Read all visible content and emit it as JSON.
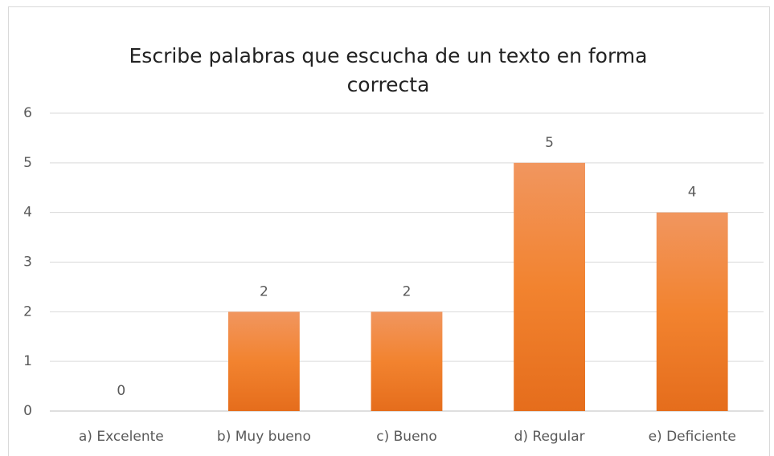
{
  "chart_data": {
    "type": "bar",
    "title": "Escribe palabras que escucha de un texto en forma correcta",
    "categories": [
      "a) Excelente",
      "b) Muy bueno",
      "c) Bueno",
      "d) Regular",
      "e) Deficiente"
    ],
    "values": [
      0,
      2,
      2,
      5,
      4
    ],
    "color": "#ed7d31",
    "ylim": [
      0,
      6
    ],
    "yticks": [
      0,
      1,
      2,
      3,
      4,
      5,
      6
    ],
    "grid": true
  }
}
